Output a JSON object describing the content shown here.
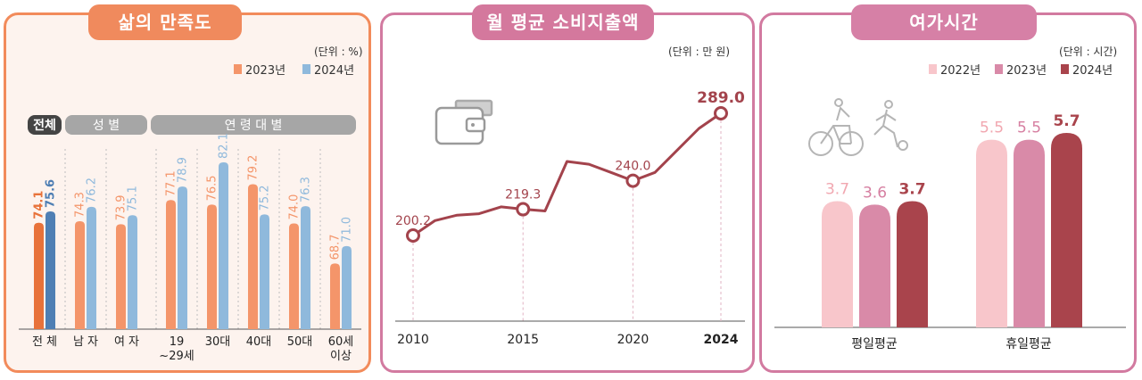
{
  "panel1": {
    "title": "삶의 만족도",
    "unit": "(단위 : %)",
    "groups": {
      "total": "전체",
      "sex": "성 별",
      "age": "연 령 대 별"
    }
  },
  "panel2": {
    "title": "월 평균 소비지출액",
    "unit": "(단위 : 만 원)"
  },
  "panel3": {
    "title": "여가시간",
    "unit": "(단위 : 시간)"
  },
  "colors": {
    "s2023": "#f4956a",
    "s2024": "#8fb9dc",
    "total2023": "#e8723a",
    "total2024": "#4f7fb4",
    "line": "#a3434c",
    "leisure2022": "#f8c6cb",
    "leisure2023": "#d98aa8",
    "leisure2024": "#a9444c"
  },
  "icons": [
    "wallet-icon",
    "cyclist-icon",
    "soccer-player-icon"
  ],
  "chart_data": [
    {
      "type": "bar",
      "title": "삶의 만족도",
      "categories": [
        "전 체",
        "남 자",
        "여 자",
        "19 ~29세",
        "30대",
        "40대",
        "50대",
        "60세 이상"
      ],
      "series": [
        {
          "name": "2023년",
          "values": [
            74.1,
            74.3,
            73.9,
            77.1,
            76.5,
            79.2,
            74.0,
            68.7
          ]
        },
        {
          "name": "2024년",
          "values": [
            75.6,
            76.2,
            75.1,
            78.9,
            82.1,
            75.2,
            76.3,
            71.0
          ]
        }
      ],
      "legend": "top-right",
      "grid": false
    },
    {
      "type": "line",
      "title": "월 평균 소비지출액",
      "x": [
        2010,
        2011,
        2012,
        2013,
        2014,
        2015,
        2016,
        2017,
        2018,
        2019,
        2020,
        2021,
        2022,
        2023,
        2024
      ],
      "y": [
        200.2,
        211,
        215,
        216,
        221,
        219.3,
        218,
        254,
        252,
        246,
        240.0,
        246,
        262,
        278,
        289.0
      ],
      "tick_labels": [
        "2010",
        "2015",
        "2020",
        "2024"
      ],
      "labeled_points": [
        {
          "x": 2010,
          "label": "200.2"
        },
        {
          "x": 2015,
          "label": "219.3"
        },
        {
          "x": 2020,
          "label": "240.0"
        },
        {
          "x": 2024,
          "label": "289.0"
        }
      ],
      "grid": false
    },
    {
      "type": "bar",
      "title": "여가시간",
      "categories": [
        "평일평균",
        "휴일평균"
      ],
      "series": [
        {
          "name": "2022년",
          "values": [
            3.7,
            5.5
          ]
        },
        {
          "name": "2023년",
          "values": [
            3.6,
            5.5
          ]
        },
        {
          "name": "2024년",
          "values": [
            3.7,
            5.7
          ]
        }
      ],
      "legend": "top-right",
      "grid": false
    }
  ]
}
